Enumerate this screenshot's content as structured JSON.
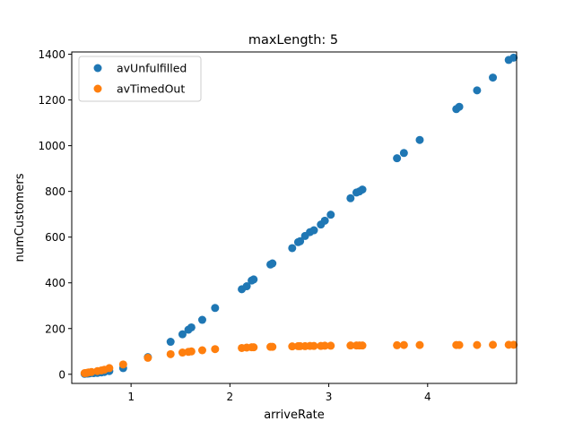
{
  "chart_data": {
    "type": "scatter",
    "title": "maxLength: 5",
    "xlabel": "arriveRate",
    "ylabel": "numCustomers",
    "xlim": [
      0.4,
      4.9
    ],
    "ylim": [
      -40,
      1410
    ],
    "xticks": [
      1,
      2,
      3,
      4
    ],
    "yticks": [
      0,
      200,
      400,
      600,
      800,
      1000,
      1200,
      1400
    ],
    "legend_position": "top-left",
    "grid": false,
    "series": [
      {
        "name": "avUnfulfilled",
        "color": "#1f77b4",
        "points": [
          [
            0.53,
            2
          ],
          [
            0.56,
            3
          ],
          [
            0.58,
            4
          ],
          [
            0.62,
            5
          ],
          [
            0.66,
            6
          ],
          [
            0.7,
            8
          ],
          [
            0.73,
            10
          ],
          [
            0.78,
            14
          ],
          [
            0.92,
            27
          ],
          [
            1.17,
            75
          ],
          [
            1.4,
            142
          ],
          [
            1.52,
            175
          ],
          [
            1.58,
            195
          ],
          [
            1.61,
            205
          ],
          [
            1.72,
            238
          ],
          [
            1.85,
            290
          ],
          [
            2.12,
            372
          ],
          [
            2.17,
            385
          ],
          [
            2.22,
            410
          ],
          [
            2.24,
            415
          ],
          [
            2.41,
            480
          ],
          [
            2.43,
            485
          ],
          [
            2.63,
            552
          ],
          [
            2.69,
            578
          ],
          [
            2.71,
            582
          ],
          [
            2.76,
            605
          ],
          [
            2.81,
            622
          ],
          [
            2.85,
            630
          ],
          [
            2.92,
            655
          ],
          [
            2.96,
            672
          ],
          [
            3.02,
            698
          ],
          [
            3.22,
            770
          ],
          [
            3.28,
            795
          ],
          [
            3.31,
            800
          ],
          [
            3.34,
            808
          ],
          [
            3.69,
            945
          ],
          [
            3.76,
            968
          ],
          [
            3.92,
            1025
          ],
          [
            4.29,
            1160
          ],
          [
            4.32,
            1170
          ],
          [
            4.5,
            1242
          ],
          [
            4.66,
            1298
          ],
          [
            4.82,
            1375
          ],
          [
            4.87,
            1385
          ]
        ]
      },
      {
        "name": "avTimedOut",
        "color": "#ff7f0e",
        "points": [
          [
            0.53,
            5
          ],
          [
            0.55,
            6
          ],
          [
            0.57,
            8
          ],
          [
            0.6,
            10
          ],
          [
            0.66,
            14
          ],
          [
            0.7,
            17
          ],
          [
            0.73,
            20
          ],
          [
            0.78,
            27
          ],
          [
            0.92,
            43
          ],
          [
            1.17,
            72
          ],
          [
            1.4,
            88
          ],
          [
            1.52,
            95
          ],
          [
            1.58,
            98
          ],
          [
            1.61,
            100
          ],
          [
            1.72,
            105
          ],
          [
            1.85,
            110
          ],
          [
            2.12,
            115
          ],
          [
            2.17,
            117
          ],
          [
            2.22,
            118
          ],
          [
            2.24,
            118
          ],
          [
            2.41,
            120
          ],
          [
            2.43,
            120
          ],
          [
            2.63,
            122
          ],
          [
            2.69,
            123
          ],
          [
            2.71,
            123
          ],
          [
            2.76,
            123
          ],
          [
            2.81,
            124
          ],
          [
            2.85,
            124
          ],
          [
            2.92,
            124
          ],
          [
            2.96,
            125
          ],
          [
            3.02,
            125
          ],
          [
            3.22,
            126
          ],
          [
            3.28,
            126
          ],
          [
            3.31,
            126
          ],
          [
            3.34,
            126
          ],
          [
            3.69,
            127
          ],
          [
            3.76,
            128
          ],
          [
            3.92,
            128
          ],
          [
            4.29,
            128
          ],
          [
            4.32,
            128
          ],
          [
            4.5,
            128
          ],
          [
            4.66,
            129
          ],
          [
            4.82,
            129
          ],
          [
            4.87,
            129
          ]
        ]
      }
    ]
  }
}
